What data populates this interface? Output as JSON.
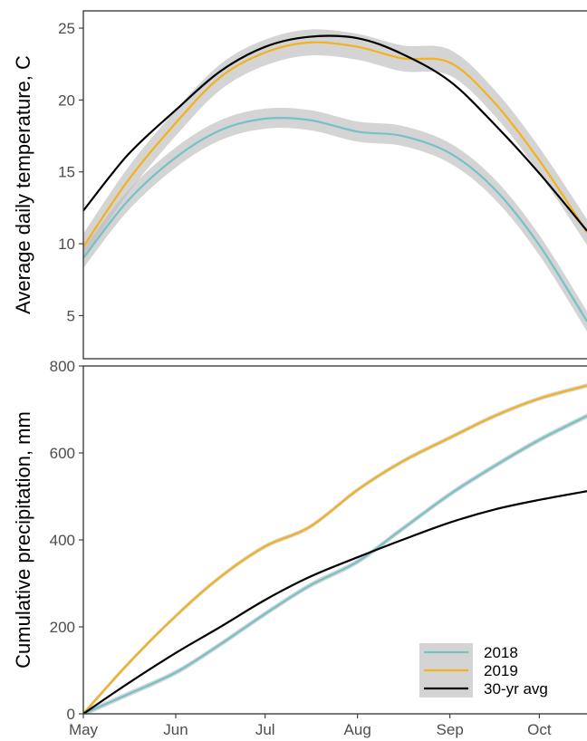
{
  "colors": {
    "series_2018": "#74c2c7",
    "series_2019": "#f2b21e",
    "series_avg": "#000000",
    "ribbon": "#bdbdbd",
    "frame": "#333333",
    "tick_text": "#4d4d4d"
  },
  "legend": {
    "placement": "bottom-right of lower panel",
    "entries": [
      "2018",
      "2019",
      "30-yr avg"
    ]
  },
  "chart_data": [
    {
      "type": "line",
      "panel": "top",
      "ylabel": "Average daily temperature, C",
      "xlabel": "",
      "x_ticks": [
        "May",
        "Jun",
        "Jul",
        "Aug",
        "Sep",
        "Oct"
      ],
      "xlim": [
        "May 1",
        "Oct 17"
      ],
      "ylim": [
        2.0,
        26.2
      ],
      "y_ticks": [
        5,
        10,
        15,
        20,
        25
      ],
      "grid": false,
      "confidence_ribbon": true,
      "x": [
        "May 1",
        "May 16",
        "Jun 1",
        "Jun 16",
        "Jul 1",
        "Jul 16",
        "Aug 1",
        "Aug 16",
        "Sep 1",
        "Sep 16",
        "Oct 1",
        "Oct 17"
      ],
      "series": [
        {
          "name": "2018",
          "ribbon": 0.7,
          "values": [
            9.0,
            13.0,
            16.0,
            17.9,
            18.7,
            18.6,
            17.8,
            17.5,
            16.3,
            13.8,
            9.9,
            4.6
          ]
        },
        {
          "name": "2019",
          "ribbon": 0.9,
          "values": [
            9.8,
            14.4,
            18.4,
            21.6,
            23.3,
            24.0,
            23.7,
            22.9,
            22.6,
            19.8,
            15.8,
            10.8
          ]
        },
        {
          "name": "30-yr avg",
          "ribbon": 0,
          "values": [
            12.3,
            16.2,
            19.3,
            22.0,
            23.7,
            24.4,
            24.3,
            23.2,
            21.3,
            18.3,
            14.9,
            10.9
          ]
        }
      ]
    },
    {
      "type": "line",
      "panel": "bottom",
      "ylabel": "Cumulative precipitation, mm",
      "xlabel": "",
      "x_ticks": [
        "May",
        "Jun",
        "Jul",
        "Aug",
        "Sep",
        "Oct"
      ],
      "xlim": [
        "May 1",
        "Oct 17"
      ],
      "ylim": [
        0,
        800
      ],
      "y_ticks": [
        0,
        200,
        400,
        600,
        800
      ],
      "grid": false,
      "confidence_ribbon": true,
      "x": [
        "May 1",
        "May 16",
        "Jun 1",
        "Jun 16",
        "Jul 1",
        "Jul 16",
        "Aug 1",
        "Aug 16",
        "Sep 1",
        "Sep 16",
        "Oct 1",
        "Oct 17"
      ],
      "series": [
        {
          "name": "2018",
          "ribbon": 6,
          "values": [
            0,
            45,
            95,
            160,
            230,
            295,
            350,
            425,
            505,
            570,
            630,
            685
          ]
        },
        {
          "name": "2019",
          "ribbon": 5,
          "values": [
            0,
            115,
            225,
            315,
            385,
            430,
            515,
            580,
            635,
            685,
            725,
            755
          ]
        },
        {
          "name": "30-yr avg",
          "ribbon": 0,
          "values": [
            0,
            70,
            140,
            200,
            262,
            315,
            360,
            400,
            440,
            470,
            492,
            512
          ]
        }
      ]
    }
  ]
}
